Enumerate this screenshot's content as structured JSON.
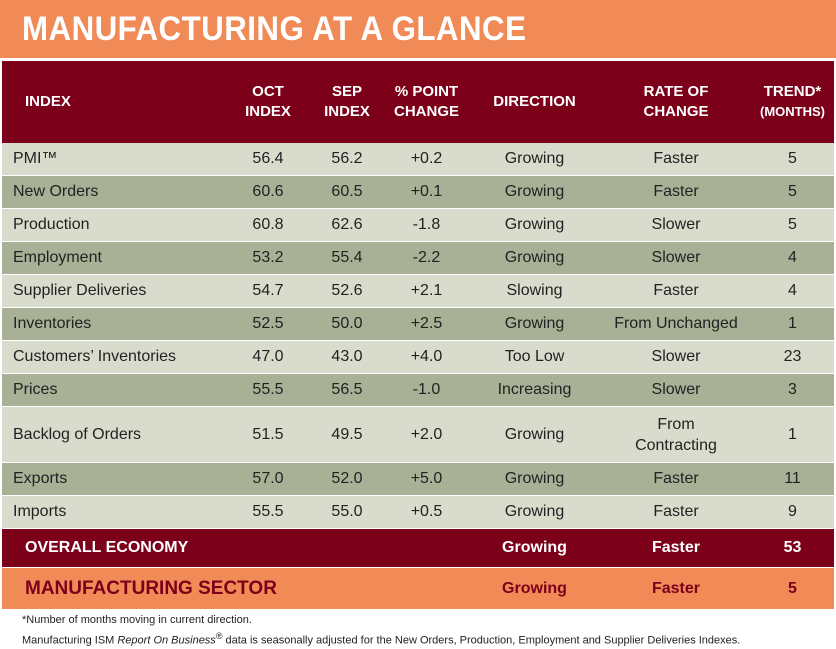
{
  "title": "MANUFACTURING AT A GLANCE",
  "headers": {
    "index": "INDEX",
    "oct_1": "OCT",
    "oct_2": "INDEX",
    "sep_1": "SEP",
    "sep_2": "INDEX",
    "chg_1": "% POINT",
    "chg_2": "CHANGE",
    "direction": "DIRECTION",
    "rate_1": "RATE OF",
    "rate_2": "CHANGE",
    "trend_1": "TREND*",
    "trend_2": "(MONTHS)"
  },
  "rows": [
    {
      "index": "PMI™",
      "oct": "56.4",
      "sep": "56.2",
      "change": "+0.2",
      "direction": "Growing",
      "rate": "Faster",
      "rate_2": "",
      "trend": "5"
    },
    {
      "index": "New Orders",
      "oct": "60.6",
      "sep": "60.5",
      "change": "+0.1",
      "direction": "Growing",
      "rate": "Faster",
      "rate_2": "",
      "trend": "5"
    },
    {
      "index": "Production",
      "oct": "60.8",
      "sep": "62.6",
      "change": "-1.8",
      "direction": "Growing",
      "rate": "Slower",
      "rate_2": "",
      "trend": "5"
    },
    {
      "index": "Employment",
      "oct": "53.2",
      "sep": "55.4",
      "change": "-2.2",
      "direction": "Growing",
      "rate": "Slower",
      "rate_2": "",
      "trend": "4"
    },
    {
      "index": "Supplier Deliveries",
      "oct": "54.7",
      "sep": "52.6",
      "change": "+2.1",
      "direction": "Slowing",
      "rate": "Faster",
      "rate_2": "",
      "trend": "4"
    },
    {
      "index": "Inventories",
      "oct": "52.5",
      "sep": "50.0",
      "change": "+2.5",
      "direction": "Growing",
      "rate": "From Unchanged",
      "rate_2": "",
      "trend": "1"
    },
    {
      "index": "Customers’ Inventories",
      "oct": "47.0",
      "sep": "43.0",
      "change": "+4.0",
      "direction": "Too Low",
      "rate": "Slower",
      "rate_2": "",
      "trend": "23"
    },
    {
      "index": "Prices",
      "oct": "55.5",
      "sep": "56.5",
      "change": "-1.0",
      "direction": "Increasing",
      "rate": "Slower",
      "rate_2": "",
      "trend": "3"
    },
    {
      "index": "Backlog of Orders",
      "oct": "51.5",
      "sep": "49.5",
      "change": "+2.0",
      "direction": "Growing",
      "rate": "From",
      "rate_2": "Contracting",
      "trend": "1"
    },
    {
      "index": "Exports",
      "oct": "57.0",
      "sep": "52.0",
      "change": "+5.0",
      "direction": "Growing",
      "rate": "Faster",
      "rate_2": "",
      "trend": "11"
    },
    {
      "index": "Imports",
      "oct": "55.5",
      "sep": "55.0",
      "change": "+0.5",
      "direction": "Growing",
      "rate": "Faster",
      "rate_2": "",
      "trend": "9"
    }
  ],
  "overall": {
    "label": "OVERALL ECONOMY",
    "direction": "Growing",
    "rate": "Faster",
    "trend": "53"
  },
  "sector": {
    "label": "MANUFACTURING SECTOR",
    "direction": "Growing",
    "rate": "Faster",
    "trend": "5"
  },
  "footnotes": {
    "note1": "*Number of months moving in current direction.",
    "note2_a": "Manufacturing ISM ",
    "note2_b": "Report On Business",
    "note2_reg": "®",
    "note2_c": " data is seasonally adjusted for the New Orders, Production, Employment and Supplier Deliveries Indexes."
  },
  "colors": {
    "maroon": "#7c0019",
    "orange": "#f08b58",
    "row_light": "#d9dccd",
    "row_dark": "#a8b096"
  }
}
